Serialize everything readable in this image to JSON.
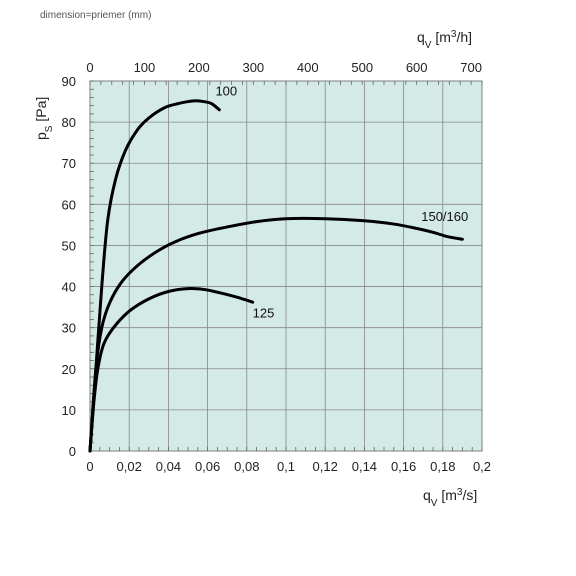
{
  "caption": "dimension=priemer (mm)",
  "chart_data": {
    "type": "line",
    "plot_background": "#d3eae7",
    "grid": true,
    "x": {
      "label_main": "q",
      "label_sub": "V",
      "label_unit_prefix": " [m",
      "label_unit_sup": "3",
      "label_unit_suffix": "/s]",
      "range": [
        0,
        0.2
      ],
      "ticks": [
        0,
        0.02,
        0.04,
        0.06,
        0.08,
        0.1,
        0.12,
        0.14,
        0.16,
        0.18,
        0.2
      ],
      "tick_labels": [
        "0",
        "0,02",
        "0,04",
        "0,06",
        "0,08",
        "0,1",
        "0,12",
        "0,14",
        "0,16",
        "0,18",
        "0,2"
      ]
    },
    "x2": {
      "label_main": "q",
      "label_sub": "V",
      "label_unit_prefix": " [m",
      "label_unit_sup": "3",
      "label_unit_suffix": "/h]",
      "range": [
        0,
        720
      ],
      "ticks": [
        0,
        100,
        200,
        300,
        400,
        500,
        600,
        700
      ],
      "tick_labels": [
        "0",
        "100",
        "200",
        "300",
        "400",
        "500",
        "600",
        "700"
      ]
    },
    "y": {
      "label_main": "p",
      "label_sub": "S",
      "label_unit": " [Pa]",
      "range": [
        0,
        90
      ],
      "ticks": [
        0,
        10,
        20,
        30,
        40,
        50,
        60,
        70,
        80,
        90
      ],
      "tick_labels": [
        "0",
        "10",
        "20",
        "30",
        "40",
        "50",
        "60",
        "70",
        "80",
        "90"
      ]
    },
    "series": [
      {
        "name": "100",
        "points": [
          [
            0,
            0
          ],
          [
            0.003,
            20
          ],
          [
            0.006,
            40
          ],
          [
            0.009,
            56
          ],
          [
            0.013,
            66
          ],
          [
            0.018,
            73
          ],
          [
            0.024,
            78
          ],
          [
            0.03,
            81
          ],
          [
            0.038,
            83.5
          ],
          [
            0.045,
            84.5
          ],
          [
            0.05,
            85
          ],
          [
            0.054,
            85.2
          ],
          [
            0.058,
            85
          ],
          [
            0.062,
            84.5
          ],
          [
            0.066,
            83
          ]
        ],
        "label_at": [
          0.064,
          86.5
        ]
      },
      {
        "name": "150/160",
        "points": [
          [
            0,
            0
          ],
          [
            0.003,
            20
          ],
          [
            0.006,
            30
          ],
          [
            0.01,
            36
          ],
          [
            0.016,
            41
          ],
          [
            0.024,
            45
          ],
          [
            0.034,
            48.5
          ],
          [
            0.044,
            51
          ],
          [
            0.056,
            53
          ],
          [
            0.07,
            54.5
          ],
          [
            0.085,
            55.8
          ],
          [
            0.1,
            56.5
          ],
          [
            0.12,
            56.5
          ],
          [
            0.14,
            56
          ],
          [
            0.155,
            55.2
          ],
          [
            0.165,
            54.3
          ],
          [
            0.175,
            53.2
          ],
          [
            0.182,
            52.2
          ],
          [
            0.19,
            51.5
          ]
        ],
        "label_at": [
          0.169,
          56
        ]
      },
      {
        "name": "125",
        "points": [
          [
            0,
            0
          ],
          [
            0.002,
            12
          ],
          [
            0.004,
            20
          ],
          [
            0.007,
            26
          ],
          [
            0.012,
            30
          ],
          [
            0.02,
            34
          ],
          [
            0.03,
            37
          ],
          [
            0.04,
            38.8
          ],
          [
            0.05,
            39.5
          ],
          [
            0.058,
            39.3
          ],
          [
            0.066,
            38.5
          ],
          [
            0.075,
            37.4
          ],
          [
            0.083,
            36.2
          ]
        ],
        "label_at": [
          0.083,
          32.5
        ]
      }
    ]
  }
}
